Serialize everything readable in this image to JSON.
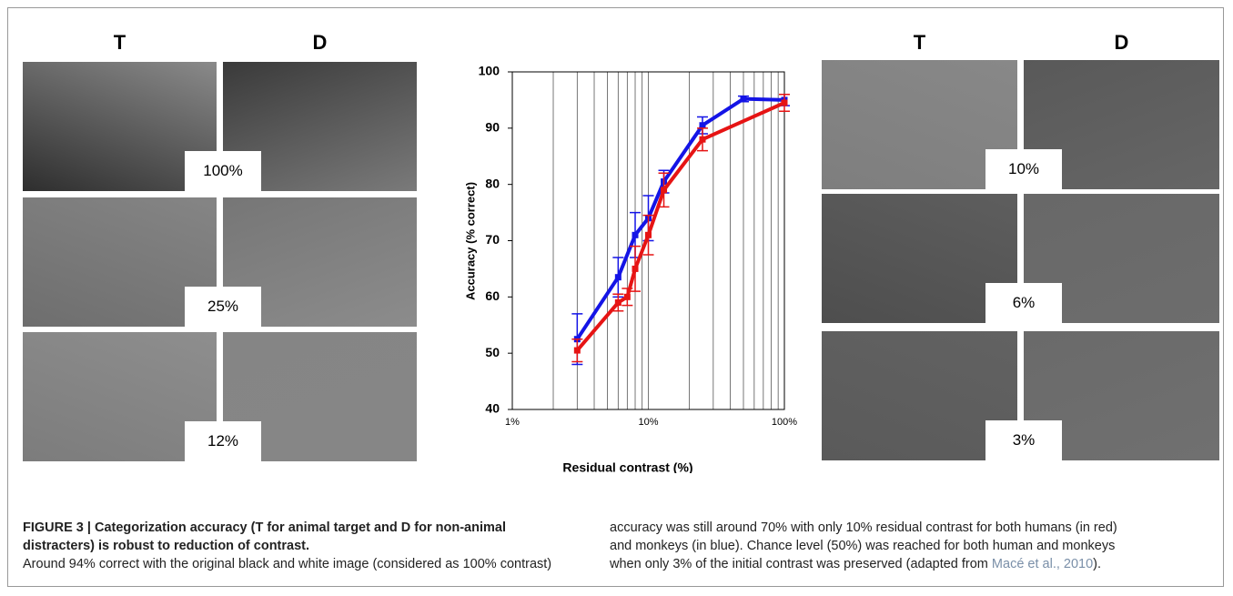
{
  "chart_data": {
    "type": "line",
    "xlabel": "Residual contrast (%)",
    "ylabel": "Accuracy (% correct)",
    "log_x": true,
    "grid": "x",
    "xlim": [
      1,
      100
    ],
    "xticks": [
      {
        "value": 1,
        "label": "1%"
      },
      {
        "value": 10,
        "label": "10%"
      },
      {
        "value": 100,
        "label": "100%"
      }
    ],
    "ylim": [
      40,
      100
    ],
    "yticks": [
      40,
      50,
      60,
      70,
      80,
      90,
      100
    ],
    "series": [
      {
        "color": "#1414e6",
        "x": [
          3,
          6,
          8,
          10,
          13,
          25,
          50,
          100
        ],
        "values": [
          52.5,
          63.5,
          71,
          74,
          80.5,
          90.5,
          95.2,
          95
        ],
        "errors": [
          4.5,
          3.5,
          4,
          4,
          2,
          1.5,
          0.5,
          1
        ]
      },
      {
        "color": "#e61414",
        "x": [
          3,
          6,
          7,
          8,
          10,
          13,
          25,
          100
        ],
        "values": [
          50.5,
          59,
          60,
          65,
          71,
          79,
          88,
          94.5
        ],
        "errors": [
          2,
          1.5,
          1.5,
          4,
          3.5,
          3,
          2,
          1.5
        ]
      }
    ]
  },
  "left_panel": {
    "headers": [
      "T",
      "D"
    ],
    "labels": [
      "100%",
      "25%",
      "12%"
    ]
  },
  "right_panel": {
    "headers": [
      "T",
      "D"
    ],
    "labels": [
      "10%",
      "6%",
      "3%"
    ]
  },
  "caption": {
    "title": "FIGURE 3 | Categorization accuracy (T for animal target and D for non-animal distracters) is robust to reduction of contrast.",
    "text": "Around 94% correct with the original black and white image (considered as 100% contrast) accuracy was still around 70% with only 10% residual contrast for both humans (in red) and monkeys (in blue). Chance level (50%) was reached for both human and monkeys when only 3% of the initial contrast was preserved (adapted from ",
    "citation": "Macé et al., 2010",
    "end": ")."
  }
}
